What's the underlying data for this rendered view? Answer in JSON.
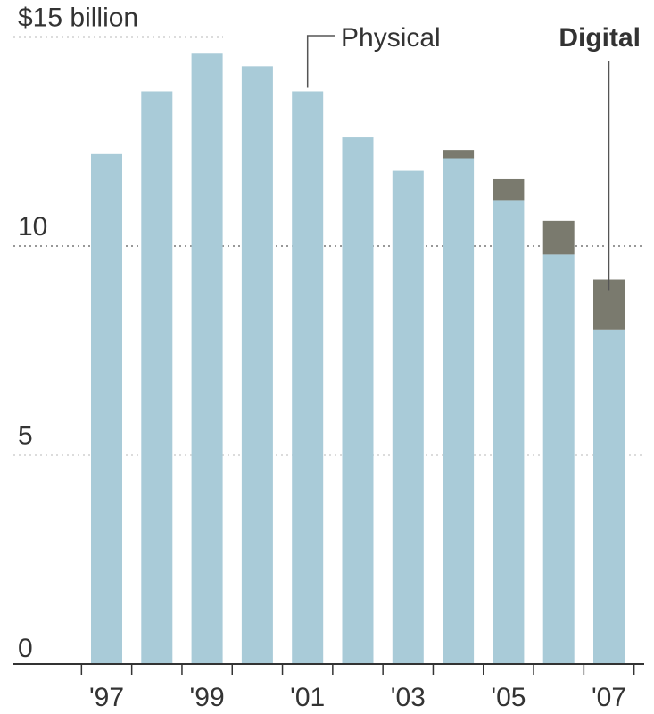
{
  "chart_data": {
    "type": "bar",
    "stacked": true,
    "categories": [
      "1997",
      "1998",
      "1999",
      "2000",
      "2001",
      "2002",
      "2003",
      "2004",
      "2005",
      "2006",
      "2007"
    ],
    "x_tick_labels": [
      "'97",
      "'99",
      "'01",
      "'03",
      "'05",
      "'07"
    ],
    "y_ticks": [
      {
        "value": 0,
        "label": "0"
      },
      {
        "value": 5,
        "label": "5"
      },
      {
        "value": 10,
        "label": "10"
      },
      {
        "value": 15,
        "label": "$15 billion"
      }
    ],
    "ylim": [
      0,
      15.6
    ],
    "grid": true,
    "series": [
      {
        "name": "Physical",
        "color": "#a9cbd8",
        "values": [
          12.2,
          13.7,
          14.6,
          14.3,
          13.7,
          12.6,
          11.8,
          12.1,
          11.1,
          9.8,
          8.0
        ]
      },
      {
        "name": "Digital",
        "color": "#7a7a6e",
        "values": [
          0,
          0,
          0,
          0,
          0,
          0,
          0,
          0.2,
          0.5,
          0.8,
          1.2
        ]
      }
    ],
    "title": "",
    "xlabel": "",
    "ylabel": ""
  }
}
